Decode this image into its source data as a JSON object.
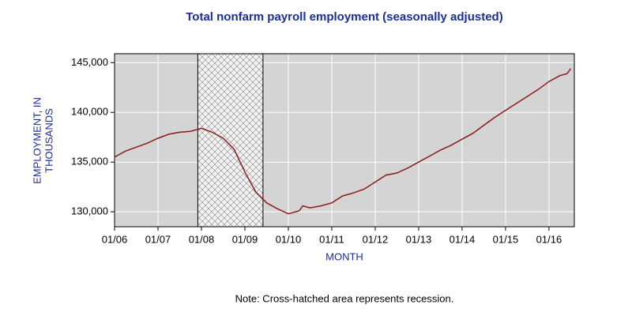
{
  "chart_data": {
    "type": "line",
    "title": "Total nonfarm payroll employment (seasonally adjusted)",
    "y_label": [
      "EMPLOYMENT, IN",
      "THOUSANDS"
    ],
    "x_label": "MONTH",
    "note": "Note: Cross-hatched area represents recession.",
    "x": [
      "01/06",
      "04/06",
      "07/06",
      "10/06",
      "01/07",
      "04/07",
      "07/07",
      "10/07",
      "01/08",
      "04/08",
      "07/08",
      "10/08",
      "01/09",
      "04/09",
      "07/09",
      "10/09",
      "01/10",
      "04/10",
      "05/10",
      "07/10",
      "10/10",
      "01/11",
      "04/11",
      "07/11",
      "10/11",
      "01/12",
      "04/12",
      "07/12",
      "10/12",
      "01/13",
      "04/13",
      "07/13",
      "10/13",
      "01/14",
      "04/14",
      "07/14",
      "10/14",
      "01/15",
      "04/15",
      "07/15",
      "10/15",
      "01/16",
      "04/16",
      "06/16",
      "07/16"
    ],
    "series": [
      {
        "name": "Total nonfarm",
        "color": "#8b1a1a",
        "values": [
          135500,
          136100,
          136500,
          136900,
          137400,
          137800,
          138000,
          138100,
          138400,
          138000,
          137400,
          136300,
          134000,
          132000,
          130900,
          130300,
          129800,
          130100,
          130600,
          130400,
          130600,
          130900,
          131600,
          131900,
          132300,
          133000,
          133700,
          133900,
          134400,
          135000,
          135600,
          136200,
          136700,
          137300,
          137900,
          138700,
          139500,
          140200,
          140900,
          141600,
          142300,
          143100,
          143700,
          143900,
          144400
        ]
      }
    ],
    "xlim": [
      "01/06",
      "08/16"
    ],
    "xticks": [
      "01/06",
      "01/07",
      "01/08",
      "01/09",
      "01/10",
      "01/11",
      "01/12",
      "01/13",
      "01/14",
      "01/15",
      "01/16"
    ],
    "ylim": [
      128500,
      145900
    ],
    "yticks": [
      {
        "value": 130000,
        "label": "130,000"
      },
      {
        "value": 135000,
        "label": "135,000"
      },
      {
        "value": 140000,
        "label": "140,000"
      },
      {
        "value": 145000,
        "label": "145,000"
      }
    ],
    "recession": [
      "12/07",
      "06/09"
    ],
    "grid": true,
    "background": "#d4d4d4"
  }
}
